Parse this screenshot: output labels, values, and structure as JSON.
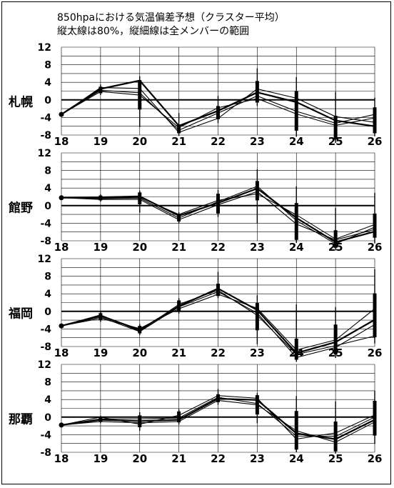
{
  "title_line1": "850hpaにおける気温偏差予想（クラスター平均）",
  "title_line2": "縦太線は80%，縦細線は全メンバーの範囲",
  "chart_data": [
    {
      "type": "line",
      "station": "札幌",
      "x": [
        "18",
        "19",
        "20",
        "21",
        "22",
        "23",
        "24",
        "25",
        "26"
      ],
      "ylim": [
        -8,
        12
      ],
      "yticks": [
        "-8",
        "-4",
        "0",
        "4",
        "8",
        "12"
      ],
      "series": [
        {
          "values": [
            -3.3,
            2.5,
            4.4,
            -5.9,
            -2.5,
            1.7,
            -0.5,
            -4.7,
            -6.0
          ]
        },
        {
          "values": [
            -3.3,
            2.2,
            1.6,
            -6.9,
            -3.0,
            0.9,
            -2.6,
            -5.3,
            -3.3
          ]
        },
        {
          "values": [
            -3.3,
            2.8,
            2.6,
            -7.4,
            -4.2,
            2.5,
            0.4,
            -3.8,
            -5.1
          ]
        },
        {
          "values": [
            -3.3,
            1.9,
            1.1,
            -6.3,
            -1.8,
            0.3,
            -3.2,
            -5.8,
            -4.1
          ]
        }
      ],
      "ranges": [
        {
          "min": -3.4,
          "max": -3.2,
          "p10": -3.4,
          "p90": -3.2
        },
        {
          "min": 1.1,
          "max": 3.5,
          "p10": 1.5,
          "p90": 3.0
        },
        {
          "min": -6.2,
          "max": 5.4,
          "p10": -2.2,
          "p90": 4.5
        },
        {
          "min": -8.2,
          "max": -3.0,
          "p10": -7.6,
          "p90": -5.6
        },
        {
          "min": -5.3,
          "max": 0.9,
          "p10": -4.4,
          "p90": -1.4
        },
        {
          "min": -1.4,
          "max": 7.2,
          "p10": -0.6,
          "p90": 4.3
        },
        {
          "min": -8.4,
          "max": 5.2,
          "p10": -7.0,
          "p90": 2.0
        },
        {
          "min": -9.8,
          "max": 1.8,
          "p10": -9.0,
          "p90": -3.6
        },
        {
          "min": -8.3,
          "max": 0.5,
          "p10": -7.6,
          "p90": -1.7
        }
      ]
    },
    {
      "type": "line",
      "station": "館野",
      "x": [
        "18",
        "19",
        "20",
        "21",
        "22",
        "23",
        "24",
        "25",
        "26"
      ],
      "ylim": [
        -8,
        12
      ],
      "yticks": [
        "-8",
        "-4",
        "0",
        "4",
        "8",
        "12"
      ],
      "series": [
        {
          "values": [
            1.8,
            1.9,
            2.1,
            -2.3,
            0.6,
            3.9,
            -2.8,
            -8.3,
            -5.9
          ]
        },
        {
          "values": [
            1.8,
            1.6,
            1.7,
            -2.8,
            0.9,
            4.4,
            -3.4,
            -8.7,
            -4.9
          ]
        },
        {
          "values": [
            1.8,
            1.4,
            1.4,
            -3.2,
            0.2,
            3.2,
            -4.2,
            -7.8,
            -5.4
          ]
        },
        {
          "values": [
            1.8,
            1.7,
            1.9,
            -2.0,
            1.2,
            2.7,
            -2.1,
            -7.6,
            -4.3
          ]
        }
      ],
      "ranges": [
        {
          "min": 1.5,
          "max": 2.1,
          "p10": 1.6,
          "p90": 2.0
        },
        {
          "min": 0.9,
          "max": 2.6,
          "p10": 1.2,
          "p90": 2.3
        },
        {
          "min": -1.6,
          "max": 3.4,
          "p10": 0.3,
          "p90": 3.0
        },
        {
          "min": -4.1,
          "max": -1.5,
          "p10": -3.6,
          "p90": -2.0
        },
        {
          "min": -2.6,
          "max": 3.6,
          "p10": -1.8,
          "p90": 2.7
        },
        {
          "min": -4.1,
          "max": 8.3,
          "p10": 1.2,
          "p90": 5.6
        },
        {
          "min": -8.5,
          "max": 4.4,
          "p10": -7.8,
          "p90": 0.6
        },
        {
          "min": -10.2,
          "max": -0.5,
          "p10": -9.6,
          "p90": -5.6
        },
        {
          "min": -8.6,
          "max": 2.9,
          "p10": -7.3,
          "p90": -1.8
        }
      ]
    },
    {
      "type": "line",
      "station": "福岡",
      "x": [
        "18",
        "19",
        "20",
        "21",
        "22",
        "23",
        "24",
        "25",
        "26"
      ],
      "ylim": [
        -8,
        12
      ],
      "yticks": [
        "-8",
        "-4",
        "0",
        "4",
        "8",
        "12"
      ],
      "series": [
        {
          "values": [
            -3.3,
            -1.0,
            -4.2,
            1.2,
            5.2,
            0.3,
            -9.5,
            -7.0,
            -1.9
          ]
        },
        {
          "values": [
            -3.3,
            -1.3,
            -4.6,
            1.0,
            4.5,
            -0.4,
            -10.5,
            -8.2,
            -3.0
          ]
        },
        {
          "values": [
            -3.3,
            -1.6,
            -3.9,
            0.6,
            3.9,
            0.7,
            -8.8,
            -6.5,
            0.6
          ]
        },
        {
          "values": [
            -3.3,
            -0.8,
            -4.5,
            1.6,
            4.8,
            -0.9,
            -9.8,
            -7.8,
            -5.6
          ]
        }
      ],
      "ranges": [
        {
          "min": -3.4,
          "max": -3.2,
          "p10": -3.4,
          "p90": -3.2
        },
        {
          "min": -2.4,
          "max": 0.0,
          "p10": -2.0,
          "p90": -0.4
        },
        {
          "min": -5.4,
          "max": -2.9,
          "p10": -5.0,
          "p90": -3.3
        },
        {
          "min": -0.5,
          "max": 3.0,
          "p10": -0.1,
          "p90": 2.5
        },
        {
          "min": 3.0,
          "max": 9.0,
          "p10": 3.5,
          "p90": 6.3
        },
        {
          "min": -7.5,
          "max": 3.7,
          "p10": -4.3,
          "p90": 1.9
        },
        {
          "min": -11.5,
          "max": 1.6,
          "p10": -11.0,
          "p90": -6.2
        },
        {
          "min": -10.6,
          "max": 1.0,
          "p10": -9.8,
          "p90": -3.0
        },
        {
          "min": -7.3,
          "max": 9.6,
          "p10": -5.9,
          "p90": 4.1
        }
      ]
    },
    {
      "type": "line",
      "station": "那覇",
      "x": [
        "18",
        "19",
        "20",
        "21",
        "22",
        "23",
        "24",
        "25",
        "26"
      ],
      "ylim": [
        -8,
        12
      ],
      "yticks": [
        "-8",
        "-4",
        "0",
        "4",
        "8",
        "12"
      ],
      "series": [
        {
          "values": [
            -1.8,
            -0.6,
            -0.9,
            -0.6,
            4.2,
            3.9,
            -3.7,
            -5.0,
            -0.6
          ]
        },
        {
          "values": [
            -1.8,
            -0.4,
            -0.4,
            -0.2,
            4.5,
            3.1,
            -4.3,
            -4.4,
            0.0
          ]
        },
        {
          "values": [
            -1.8,
            -1.0,
            -1.3,
            -1.0,
            3.8,
            2.8,
            -3.1,
            -5.7,
            -1.1
          ]
        },
        {
          "values": [
            -1.8,
            0.0,
            -1.6,
            0.4,
            4.9,
            4.3,
            -5.0,
            -3.6,
            0.5
          ]
        }
      ],
      "ranges": [
        {
          "min": -2.0,
          "max": -1.6,
          "p10": -1.9,
          "p90": -1.7
        },
        {
          "min": -1.4,
          "max": 0.3,
          "p10": -1.1,
          "p90": 0.1
        },
        {
          "min": -3.1,
          "max": 1.1,
          "p10": -2.3,
          "p90": 0.4
        },
        {
          "min": -1.7,
          "max": 1.8,
          "p10": -1.2,
          "p90": 1.3
        },
        {
          "min": 2.8,
          "max": 6.4,
          "p10": 3.4,
          "p90": 5.2
        },
        {
          "min": -1.4,
          "max": 5.5,
          "p10": 0.6,
          "p90": 5.0
        },
        {
          "min": -8.0,
          "max": 4.8,
          "p10": -7.4,
          "p90": 1.4
        },
        {
          "min": -8.3,
          "max": 3.6,
          "p10": -7.8,
          "p90": -1.0
        },
        {
          "min": -6.1,
          "max": 6.0,
          "p10": -4.2,
          "p90": 3.7
        }
      ]
    }
  ]
}
